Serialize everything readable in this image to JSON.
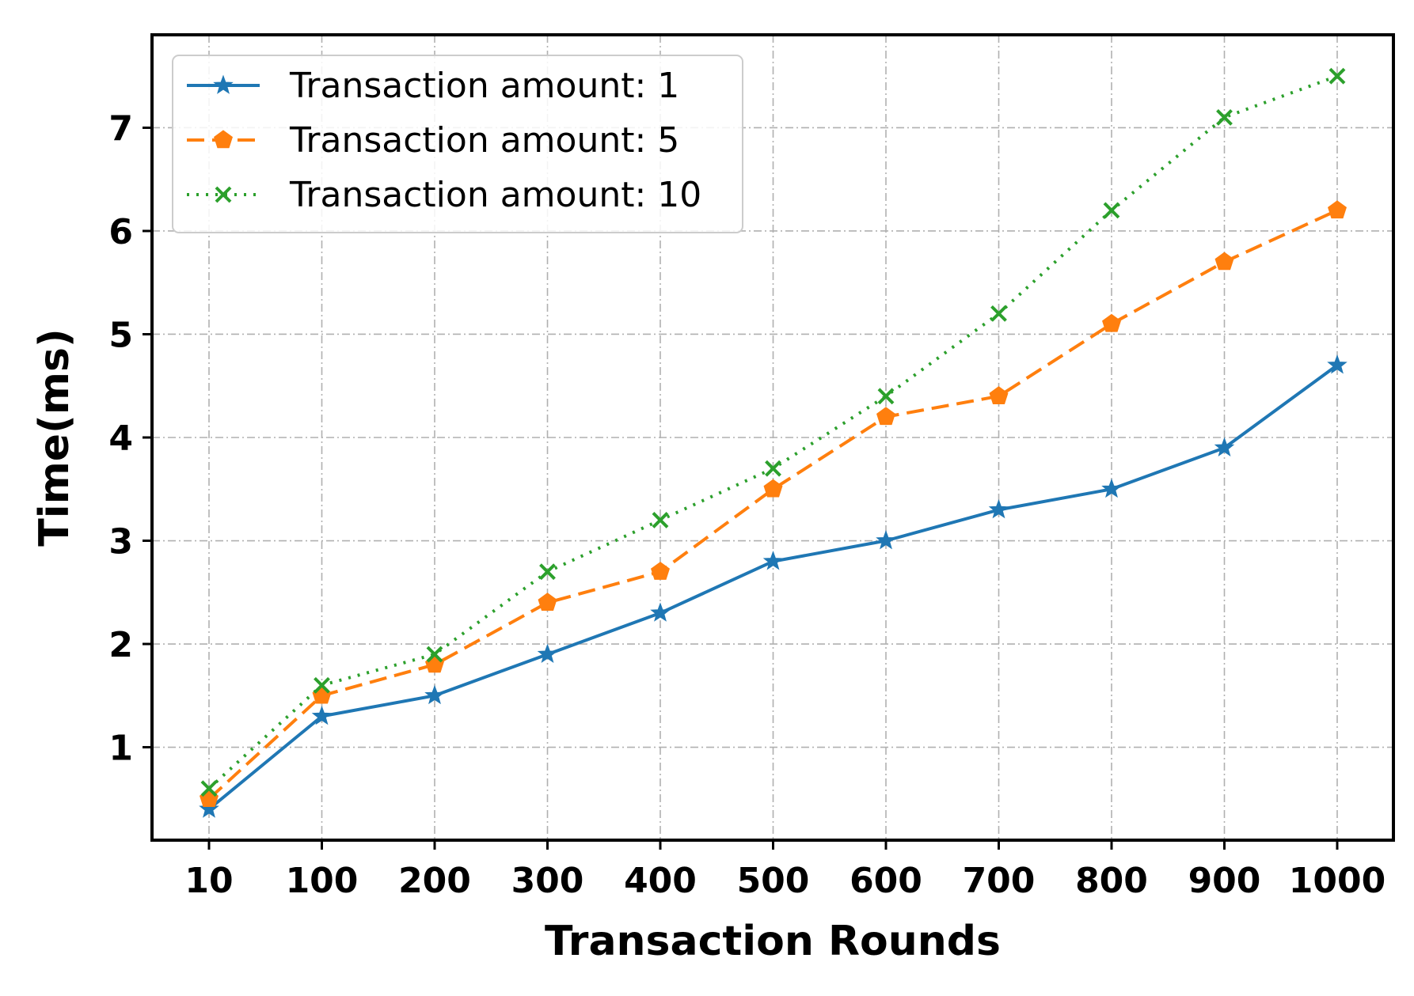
{
  "chart_data": {
    "type": "line",
    "title": "",
    "xlabel": "Transaction Rounds",
    "ylabel": "Time(ms)",
    "categories": [
      "10",
      "100",
      "200",
      "300",
      "400",
      "500",
      "600",
      "700",
      "800",
      "900",
      "1000"
    ],
    "ylim": [
      0.1,
      7.9
    ],
    "yticks": [
      "1",
      "2",
      "3",
      "4",
      "5",
      "6",
      "7"
    ],
    "grid": true,
    "legend_position": "top-left",
    "series": [
      {
        "name": "Transaction amount: 1",
        "color": "#1f77b4",
        "line_style": "solid",
        "marker": "star",
        "values": [
          0.4,
          1.3,
          1.5,
          1.9,
          2.3,
          2.8,
          3.0,
          3.3,
          3.5,
          3.9,
          4.7
        ]
      },
      {
        "name": "Transaction amount: 5",
        "color": "#ff7f0e",
        "line_style": "dashed",
        "marker": "pentagon",
        "values": [
          0.5,
          1.5,
          1.8,
          2.4,
          2.7,
          3.5,
          4.2,
          4.4,
          5.1,
          5.7,
          6.2
        ]
      },
      {
        "name": "Transaction amount: 10",
        "color": "#2ca02c",
        "line_style": "dotted",
        "marker": "x",
        "values": [
          0.6,
          1.6,
          1.9,
          2.7,
          3.2,
          3.7,
          4.4,
          5.2,
          6.2,
          7.1,
          7.5
        ]
      }
    ]
  }
}
